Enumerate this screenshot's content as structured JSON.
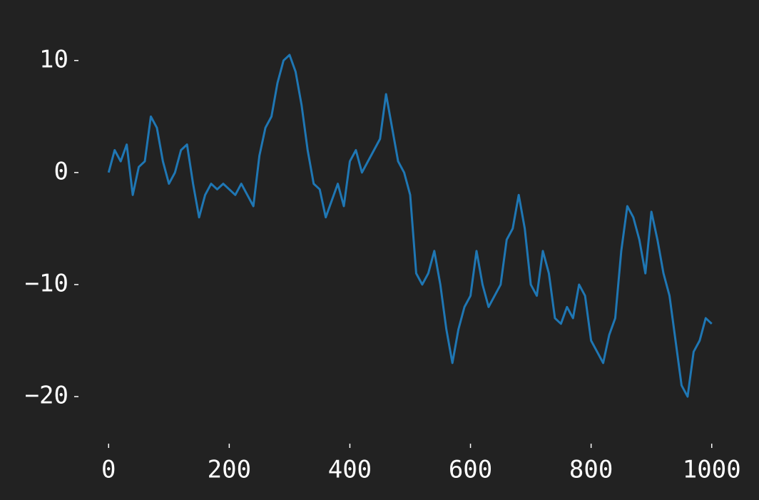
{
  "chart_data": {
    "type": "line",
    "x": [
      0,
      10,
      20,
      30,
      40,
      50,
      60,
      70,
      80,
      90,
      100,
      110,
      120,
      130,
      140,
      150,
      160,
      170,
      180,
      190,
      200,
      210,
      220,
      230,
      240,
      250,
      260,
      270,
      280,
      290,
      300,
      310,
      320,
      330,
      340,
      350,
      360,
      370,
      380,
      390,
      400,
      410,
      420,
      430,
      440,
      450,
      460,
      470,
      480,
      490,
      500,
      510,
      520,
      530,
      540,
      550,
      560,
      570,
      580,
      590,
      600,
      610,
      620,
      630,
      640,
      650,
      660,
      670,
      680,
      690,
      700,
      710,
      720,
      730,
      740,
      750,
      760,
      770,
      780,
      790,
      800,
      810,
      820,
      830,
      840,
      850,
      860,
      870,
      880,
      890,
      900,
      910,
      920,
      930,
      940,
      950,
      960,
      970,
      980,
      990,
      1000
    ],
    "series": [
      {
        "color": "#1f77b4",
        "values": [
          0,
          2,
          1,
          2.5,
          -2,
          0.5,
          1,
          5,
          4,
          1,
          -1,
          0,
          2,
          2.5,
          -1,
          -4,
          -2,
          -1,
          -1.5,
          -1,
          -1.5,
          -2,
          -1,
          -2,
          -3,
          1.5,
          4,
          5,
          8,
          10,
          10.5,
          9,
          6,
          2,
          -1,
          -1.5,
          -4,
          -2.5,
          -1,
          -3,
          1,
          2,
          0,
          1,
          2,
          3,
          7,
          4,
          1,
          0,
          -2,
          -9,
          -10,
          -9,
          -7,
          -10,
          -14,
          -17,
          -14,
          -12,
          -11,
          -7,
          -10,
          -12,
          -11,
          -10,
          -6,
          -5,
          -2,
          -5,
          -10,
          -11,
          -7,
          -9,
          -13,
          -13.5,
          -12,
          -13,
          -10,
          -11,
          -15,
          -16,
          -17,
          -14.5,
          -13,
          -7,
          -3,
          -4,
          -6,
          -9,
          -3.5,
          -6,
          -9,
          -11,
          -15,
          -19,
          -20,
          -16,
          -15,
          -13,
          -13.5
        ]
      }
    ],
    "xlim": [
      -50,
      1050
    ],
    "ylim": [
      -24.2,
      14
    ],
    "xticks": [
      0,
      200,
      400,
      600,
      800,
      1000
    ],
    "yticks": [
      {
        "value": -20,
        "label": "−20"
      },
      {
        "value": -10,
        "label": "−10"
      },
      0,
      10
    ]
  }
}
